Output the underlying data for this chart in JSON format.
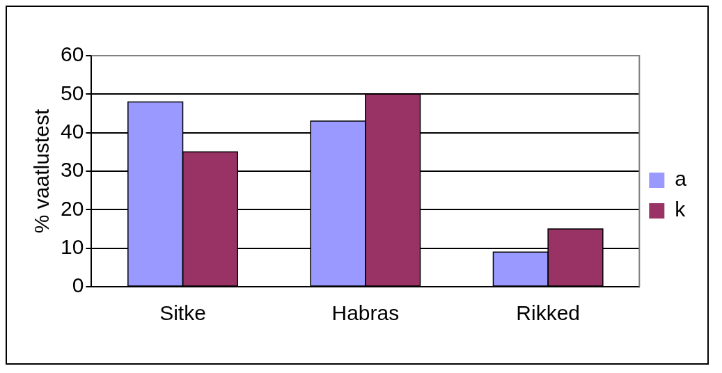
{
  "chart_data": {
    "type": "bar",
    "ylabel": "% vaatlustest",
    "categories": [
      "Sitke",
      "Habras",
      "Rikked"
    ],
    "series": [
      {
        "name": "a",
        "color": "#9999ff",
        "values": [
          48,
          43,
          9
        ]
      },
      {
        "name": "k",
        "color": "#993366",
        "values": [
          35,
          50,
          15
        ]
      }
    ],
    "ylim": [
      0,
      60
    ],
    "yticks": [
      0,
      10,
      20,
      30,
      40,
      50,
      60
    ],
    "grid": "y",
    "legend": "right"
  }
}
